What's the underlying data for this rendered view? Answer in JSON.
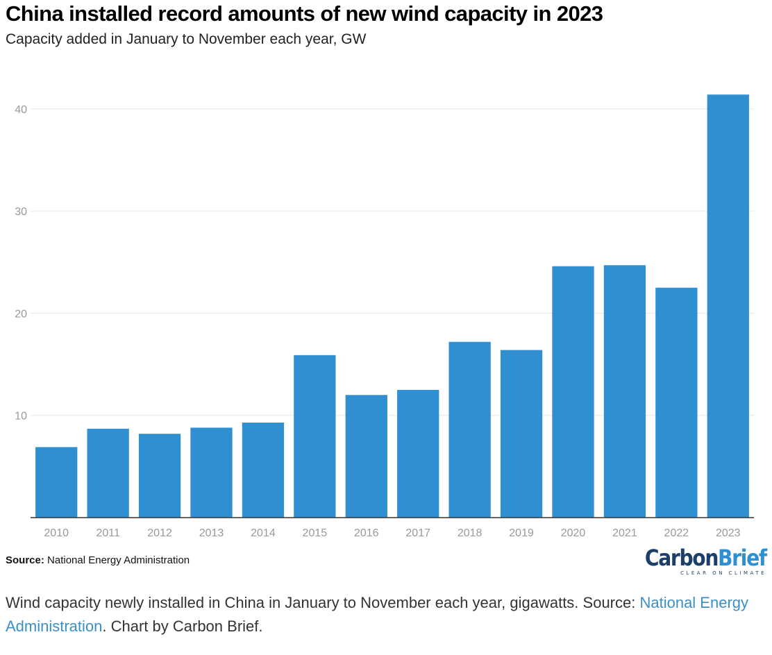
{
  "header": {
    "title": "China installed record amounts of new wind capacity in 2023",
    "subtitle": "Capacity added in January to November each year, GW"
  },
  "chart_data": {
    "type": "bar",
    "title": "China installed record amounts of new wind capacity in 2023",
    "subtitle": "Capacity added in January to November each year, GW",
    "xlabel": "",
    "ylabel": "",
    "categories": [
      "2010",
      "2011",
      "2012",
      "2013",
      "2014",
      "2015",
      "2016",
      "2017",
      "2018",
      "2019",
      "2020",
      "2021",
      "2022",
      "2023"
    ],
    "values": [
      6.9,
      8.7,
      8.2,
      8.8,
      9.3,
      15.9,
      12.0,
      12.5,
      17.2,
      16.4,
      24.6,
      24.7,
      22.5,
      41.4
    ],
    "ylim": [
      0,
      44
    ],
    "yticks": [
      10,
      20,
      30,
      40
    ],
    "grid": true,
    "bar_color": "#2f8fd0"
  },
  "footer": {
    "source_label": "Source:",
    "source_text": "National Energy Administration",
    "logo_carbon": "Carbon",
    "logo_brief": "Brief",
    "logo_tagline": "CLEAR ON CLIMATE"
  },
  "caption": {
    "text_before": "Wind capacity newly installed in China in January to November each year, gigawatts. Source: ",
    "link_text": "National Energy Administration",
    "text_after": ". Chart by Carbon Brief."
  },
  "colors": {
    "bar": "#2f8fd0",
    "grid": "#e6e6e6",
    "axis": "#333333",
    "tick_text": "#999999",
    "link": "#3a8fc6"
  }
}
